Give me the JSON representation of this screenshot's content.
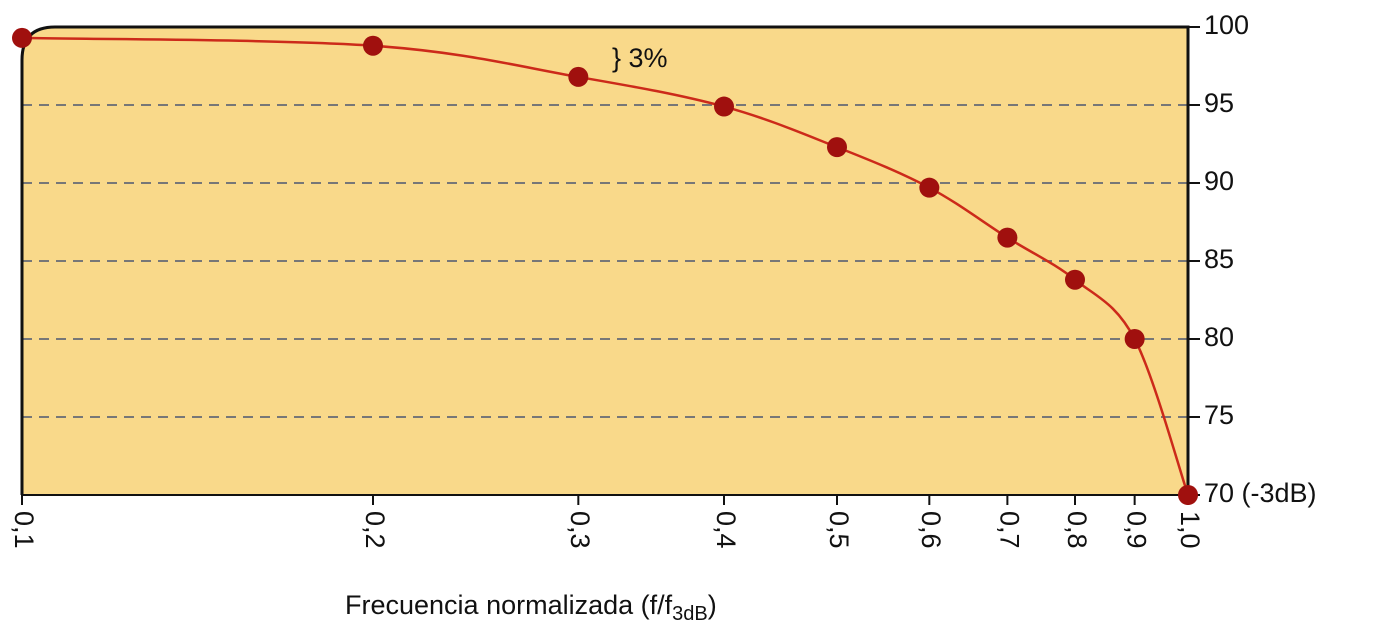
{
  "chart_data": {
    "type": "line",
    "x": [
      0.1,
      0.2,
      0.3,
      0.4,
      0.5,
      0.6,
      0.7,
      0.8,
      0.9,
      1.0
    ],
    "series": [
      {
        "color": "#cc2a1a",
        "marker_color": "#a0100e",
        "values": [
          99.3,
          98.8,
          96.8,
          94.9,
          92.3,
          89.7,
          86.5,
          83.8,
          80,
          70
        ]
      }
    ],
    "xlim": [
      0.1,
      1.0
    ],
    "xscale": "log",
    "xticks": [
      {
        "value": 0.1,
        "label": "0,1"
      },
      {
        "value": 0.2,
        "label": "0,2"
      },
      {
        "value": 0.3,
        "label": "0,3"
      },
      {
        "value": 0.4,
        "label": "0,4"
      },
      {
        "value": 0.5,
        "label": "0,5"
      },
      {
        "value": 0.6,
        "label": "0,6"
      },
      {
        "value": 0.7,
        "label": "0,7"
      },
      {
        "value": 0.8,
        "label": "0,8"
      },
      {
        "value": 0.9,
        "label": "0,9"
      },
      {
        "value": 1.0,
        "label": "1,0"
      }
    ],
    "ylim": [
      70,
      100
    ],
    "yticks": [
      {
        "value": 70,
        "label": "70 (-3dB)"
      },
      75,
      80,
      85,
      90,
      95,
      100
    ],
    "grid": true,
    "x_label": {
      "text": "Frecuencia normalizada (f/f",
      "sub": "3dB",
      "end": ")"
    },
    "annotation": "} 3%"
  }
}
